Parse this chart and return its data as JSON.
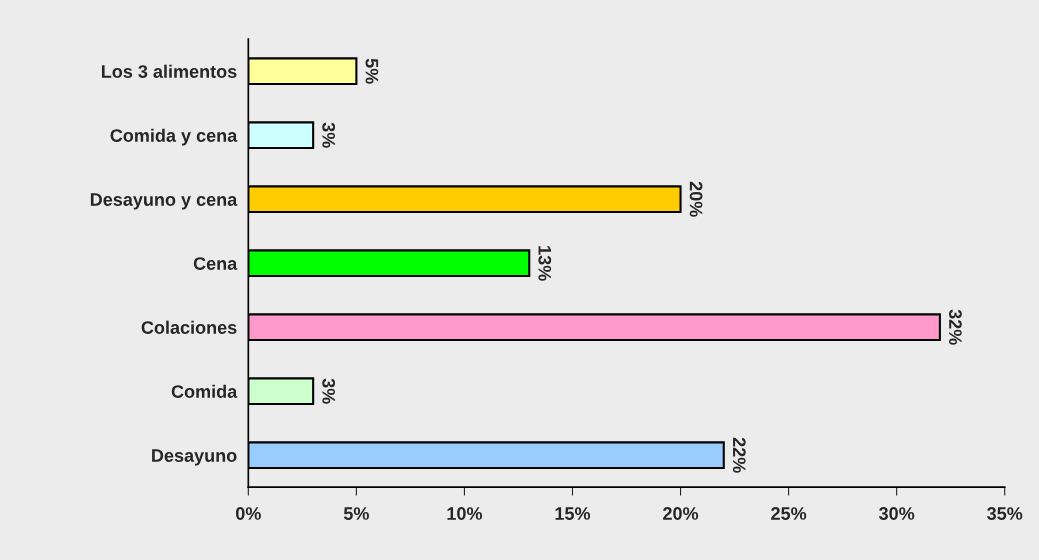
{
  "chart_data": {
    "type": "bar",
    "orientation": "horizontal",
    "categories": [
      "Los 3 alimentos",
      "Comida y cena",
      "Desayuno y cena",
      "Cena",
      "Colaciones",
      "Comida",
      "Desayuno"
    ],
    "values": [
      5,
      3,
      20,
      13,
      32,
      3,
      22
    ],
    "colors": [
      "#ffff99",
      "#ccffff",
      "#ffcc00",
      "#00ff00",
      "#ff99cc",
      "#ccffcc",
      "#99ccff"
    ],
    "value_labels": [
      "5%",
      "3%",
      "20%",
      "13%",
      "32%",
      "3%",
      "22%"
    ],
    "xlim": [
      0,
      35
    ],
    "xticks": [
      {
        "value": 0,
        "label": "0%"
      },
      {
        "value": 5,
        "label": "5%"
      },
      {
        "value": 10,
        "label": "10%"
      },
      {
        "value": 15,
        "label": "15%"
      },
      {
        "value": 20,
        "label": "20%"
      },
      {
        "value": 25,
        "label": "25%"
      },
      {
        "value": 30,
        "label": "30%"
      },
      {
        "value": 35,
        "label": "35%"
      }
    ],
    "grid": false,
    "legend": false
  }
}
